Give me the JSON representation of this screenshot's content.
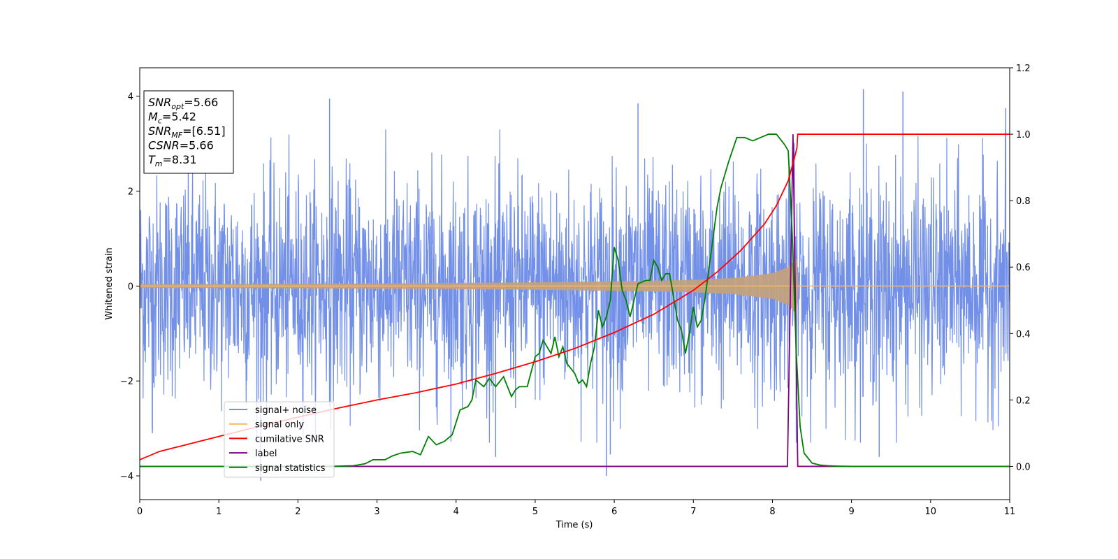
{
  "chart_data": {
    "type": "line",
    "title": "",
    "xlabel": "Time (s)",
    "ylabel": "Whitened strain",
    "xlim": [
      0,
      11
    ],
    "ylim": [
      -4.5,
      4.6
    ],
    "y2lim": [
      -0.1,
      1.2
    ],
    "grid": false,
    "legend_position": "lower-left",
    "x_ticks": [
      "0",
      "1",
      "2",
      "3",
      "4",
      "5",
      "6",
      "7",
      "8",
      "9",
      "10",
      "11"
    ],
    "y_ticks": [
      "4",
      "2",
      "0",
      "−2",
      "−4"
    ],
    "y2_ticks": [
      "1.2",
      "1.0",
      "0.8",
      "0.6",
      "0.4",
      "0.2",
      "0.0"
    ],
    "annotation": {
      "lines": [
        {
          "base": "SNR",
          "sub": "opt",
          "rest": "=5.66"
        },
        {
          "base": "M",
          "sub": "c",
          "rest": "=5.42"
        },
        {
          "base": "SNR",
          "sub": "MF",
          "rest": "=[6.51]"
        },
        {
          "base": "CSNR",
          "sub": "",
          "rest": "=5.66"
        },
        {
          "base": "T",
          "sub": "m",
          "rest": "=8.31"
        }
      ]
    },
    "series": [
      {
        "name": "signal+ noise",
        "color": "#7390e8",
        "axis": "left",
        "description_type": "noise",
        "envelope_typical": 2.3,
        "peak_points": [
          [
            2.4,
            3.95
          ],
          [
            6.3,
            3.85
          ],
          [
            9.15,
            4.15
          ],
          [
            9.65,
            4.1
          ],
          [
            10.95,
            3.75
          ],
          [
            1.53,
            -4.1
          ],
          [
            5.9,
            -4.0
          ],
          [
            4.5,
            -3.6
          ],
          [
            5.95,
            -3.55
          ],
          [
            9.35,
            -3.6
          ],
          [
            0.16,
            -3.1
          ],
          [
            8.3,
            -2.6
          ]
        ]
      },
      {
        "name": "signal only",
        "color": "#f5b76a",
        "axis": "left",
        "envelope": {
          "x": [
            0,
            1,
            2,
            3,
            4,
            5,
            6,
            7,
            7.5,
            8.0,
            8.2,
            8.31,
            8.32,
            11
          ],
          "amp": [
            0.04,
            0.045,
            0.05,
            0.055,
            0.065,
            0.08,
            0.1,
            0.13,
            0.17,
            0.27,
            0.4,
            0.6,
            0.0,
            0.0
          ]
        }
      },
      {
        "name": "cumilative SNR",
        "color": "#ff0000",
        "axis": "right",
        "x": [
          0,
          0.25,
          0.5,
          1,
          1.5,
          2,
          2.5,
          3,
          3.5,
          4,
          4.5,
          5,
          5.5,
          6,
          6.5,
          7,
          7.3,
          7.6,
          7.9,
          8.05,
          8.2,
          8.28,
          8.31,
          8.32,
          11
        ],
        "y": [
          0.02,
          0.045,
          0.06,
          0.09,
          0.12,
          0.148,
          0.175,
          0.2,
          0.222,
          0.248,
          0.28,
          0.315,
          0.355,
          0.403,
          0.458,
          0.53,
          0.585,
          0.65,
          0.73,
          0.785,
          0.86,
          0.93,
          0.96,
          1.0,
          1.0
        ]
      },
      {
        "name": "label",
        "color": "#800080",
        "axis": "right",
        "x": [
          0,
          8.19,
          8.26,
          8.32,
          11
        ],
        "y": [
          0.0,
          0.0,
          1.0,
          0.0,
          0.0
        ]
      },
      {
        "name": "signal statistics",
        "color": "#008000",
        "axis": "right",
        "x": [
          0,
          1,
          2,
          2.4,
          2.7,
          2.85,
          2.95,
          3.1,
          3.2,
          3.3,
          3.45,
          3.55,
          3.65,
          3.75,
          3.85,
          3.95,
          4.05,
          4.15,
          4.2,
          4.25,
          4.35,
          4.42,
          4.5,
          4.6,
          4.7,
          4.75,
          4.8,
          4.9,
          5.0,
          5.05,
          5.1,
          5.15,
          5.2,
          5.25,
          5.3,
          5.35,
          5.4,
          5.5,
          5.55,
          5.6,
          5.65,
          5.7,
          5.75,
          5.8,
          5.85,
          5.9,
          5.95,
          6.0,
          6.05,
          6.1,
          6.15,
          6.2,
          6.3,
          6.4,
          6.45,
          6.5,
          6.55,
          6.6,
          6.65,
          6.7,
          6.8,
          6.85,
          6.9,
          6.95,
          7.0,
          7.05,
          7.1,
          7.15,
          7.2,
          7.3,
          7.35,
          7.45,
          7.55,
          7.65,
          7.75,
          7.85,
          7.95,
          8.05,
          8.15,
          8.2,
          8.25,
          8.3,
          8.35,
          8.4,
          8.5,
          8.6,
          8.7,
          8.8,
          9.0,
          11
        ],
        "y": [
          0.0,
          0.0,
          0.0,
          0.0,
          0.002,
          0.008,
          0.02,
          0.02,
          0.032,
          0.04,
          0.045,
          0.035,
          0.09,
          0.065,
          0.075,
          0.095,
          0.17,
          0.18,
          0.2,
          0.26,
          0.24,
          0.265,
          0.24,
          0.27,
          0.21,
          0.23,
          0.24,
          0.24,
          0.33,
          0.34,
          0.38,
          0.36,
          0.34,
          0.39,
          0.33,
          0.36,
          0.31,
          0.28,
          0.25,
          0.26,
          0.24,
          0.31,
          0.36,
          0.47,
          0.42,
          0.45,
          0.5,
          0.66,
          0.62,
          0.53,
          0.5,
          0.45,
          0.55,
          0.56,
          0.56,
          0.62,
          0.6,
          0.56,
          0.58,
          0.58,
          0.44,
          0.41,
          0.34,
          0.4,
          0.48,
          0.42,
          0.44,
          0.51,
          0.6,
          0.78,
          0.84,
          0.92,
          0.99,
          0.99,
          0.98,
          0.99,
          1.0,
          1.0,
          0.97,
          0.95,
          0.7,
          0.35,
          0.12,
          0.04,
          0.01,
          0.004,
          0.002,
          0.001,
          0.0,
          0.0
        ]
      }
    ]
  }
}
